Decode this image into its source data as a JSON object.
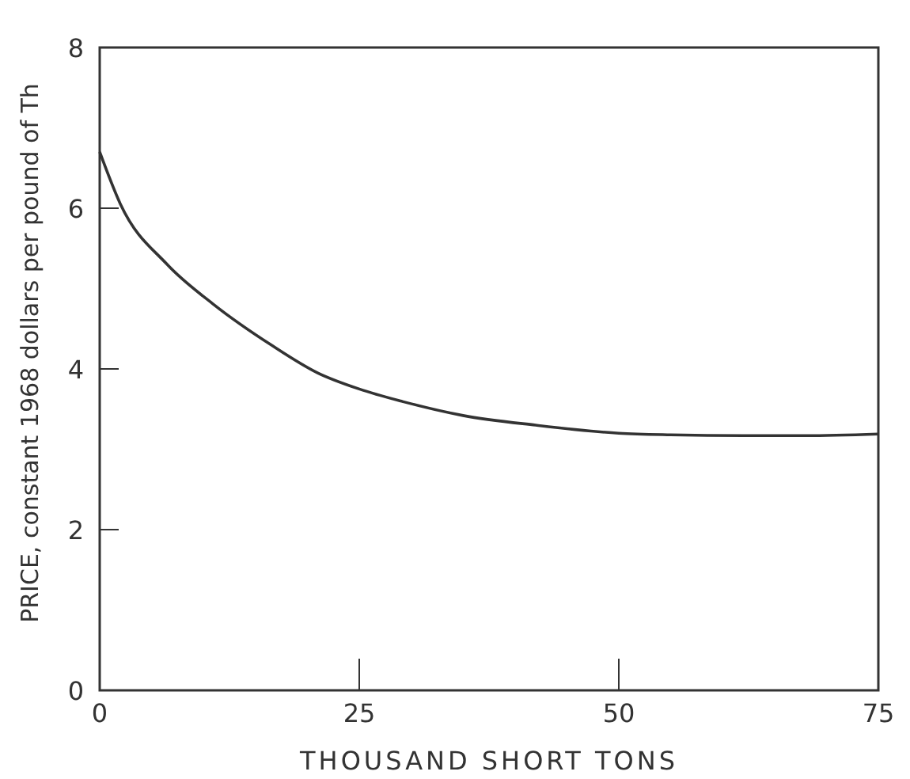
{
  "chart_data": {
    "type": "line",
    "xlabel": "THOUSAND SHORT TONS",
    "ylabel": "PRICE, constant 1968 dollars per pound of Th",
    "x": [
      0,
      2,
      6.5,
      11,
      16.5,
      21,
      25,
      29,
      35,
      42,
      50,
      55,
      62,
      68,
      75
    ],
    "series": [
      {
        "color": "#333333",
        "values": [
          6.7,
          6.05,
          5.3,
          4.8,
          4.3,
          3.95,
          3.75,
          3.6,
          3.42,
          3.3,
          3.2,
          3.18,
          3.17,
          3.17,
          3.19
        ]
      }
    ],
    "xlim": [
      0,
      75
    ],
    "ylim": [
      0,
      8
    ],
    "xticks": [
      0,
      25,
      50,
      75
    ],
    "yticks": [
      0,
      2,
      4,
      6,
      8
    ],
    "grid": false,
    "legend": false,
    "marker": "none",
    "line_style": "solid"
  }
}
